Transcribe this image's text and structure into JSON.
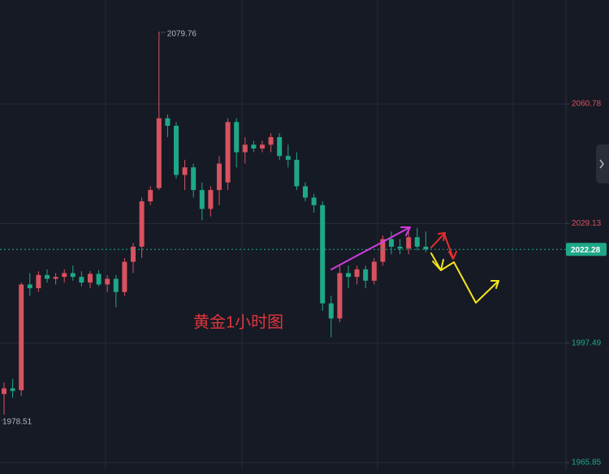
{
  "chart_data": {
    "type": "candlestick",
    "up_color": "#d9525f",
    "down_color": "#1fa888",
    "ylim": [
      1963.9,
      2088.3
    ],
    "yticks": [
      2060.78,
      2029.13,
      1997.49,
      1965.85
    ],
    "grid": true,
    "high_marker": 2079.76,
    "low_marker": 1978.51,
    "last_price": 2022.28,
    "annotation": "黄金1小时图",
    "annotation_color": "#e0353a",
    "open": [
      1984,
      1985.5,
      1985,
      2013,
      2012,
      2015.5,
      2014.5,
      2015,
      2016,
      2015,
      2013.5,
      2015.8,
      2013,
      2014.5,
      2011,
      2019,
      2023,
      2035,
      2038.5,
      2057,
      2055,
      2042,
      2044,
      2038,
      2033,
      2038,
      2040,
      2056,
      2048,
      2050,
      2049,
      2050,
      2052,
      2047,
      2046,
      2039,
      2036,
      2034,
      2008,
      2004,
      2016,
      2015,
      2017,
      2014,
      2019,
      2025,
      2023,
      2022.5,
      2025.5,
      2023
    ],
    "high": [
      1987,
      1988,
      2013.5,
      2016,
      2016.5,
      2017,
      2016,
      2017,
      2018,
      2016.5,
      2016.5,
      2016.8,
      2015.5,
      2015.5,
      2020,
      2024,
      2036,
      2039,
      2079.76,
      2058,
      2056,
      2046,
      2045,
      2040,
      2039,
      2047,
      2057,
      2057,
      2052,
      2051,
      2051,
      2053,
      2053,
      2050,
      2048,
      2040,
      2037,
      2035,
      2010,
      2018,
      2018,
      2018,
      2018,
      2020,
      2026,
      2027,
      2025,
      2027,
      2028,
      2027
    ],
    "low": [
      1978.51,
      1983,
      1983.5,
      2010,
      2011,
      2013.5,
      2013,
      2013.5,
      2014,
      2012.5,
      2012,
      2012.5,
      2011,
      2007,
      2010,
      2016,
      2020,
      2034,
      2038,
      2052,
      2041,
      2038,
      2036,
      2030,
      2031,
      2034,
      2038,
      2044,
      2045,
      2048,
      2048,
      2048,
      2046,
      2044,
      2038,
      2035,
      2032,
      2006,
      1999,
      2003,
      2012,
      2013,
      2012,
      2013,
      2018,
      2021,
      2021,
      2021,
      2022,
      2021.5
    ],
    "close": [
      1985.5,
      1984.8,
      2013,
      2012,
      2015.5,
      2014.5,
      2015,
      2016,
      2015,
      2013.5,
      2015.8,
      2013,
      2014.5,
      2011,
      2019,
      2023,
      2035,
      2038,
      2057,
      2055,
      2042,
      2044,
      2038,
      2033,
      2038,
      2045,
      2056,
      2048,
      2050,
      2049,
      2050,
      2052,
      2047,
      2046,
      2039,
      2036,
      2034,
      2008,
      2004,
      2016,
      2015,
      2017,
      2014,
      2019,
      2025,
      2023,
      2022.5,
      2025.5,
      2023,
      2022.28
    ]
  }
}
